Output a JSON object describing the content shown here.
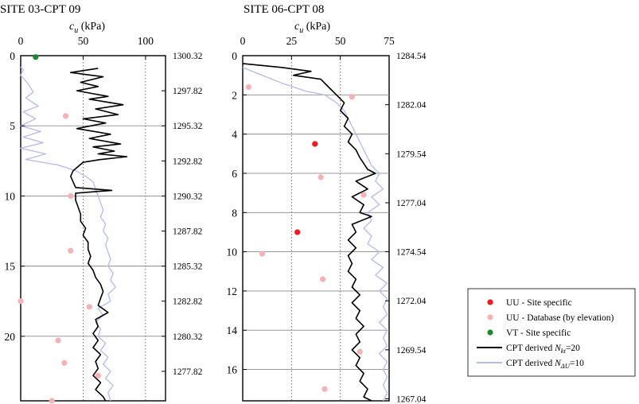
{
  "chart_data": [
    {
      "type": "line",
      "title": "SITE 03-CPT 09",
      "xlabel_var": "c",
      "xlabel_sub": "u",
      "xlabel_unit": " (kPa)",
      "xticks": [
        0,
        50,
        100
      ],
      "xlim": [
        0,
        116
      ],
      "ylim": [
        0,
        24.6
      ],
      "yticks": [
        0,
        5,
        10,
        15,
        20
      ],
      "elevation_ticks": [
        {
          "depth": 0,
          "label": "1300.32"
        },
        {
          "depth": 2.5,
          "label": "1297.82"
        },
        {
          "depth": 5,
          "label": "1295.32"
        },
        {
          "depth": 7.5,
          "label": "1292.82"
        },
        {
          "depth": 10,
          "label": "1290.32"
        },
        {
          "depth": 12.5,
          "label": "1287.82"
        },
        {
          "depth": 15,
          "label": "1285.32"
        },
        {
          "depth": 17.5,
          "label": "1282.82"
        },
        {
          "depth": 20,
          "label": "1280.32"
        },
        {
          "depth": 22.5,
          "label": "1277.82"
        }
      ],
      "hgrid": [
        5,
        10,
        15,
        20
      ],
      "vgrid": [
        50,
        100
      ],
      "series": [
        {
          "key": "cpt_nkt",
          "color": "#000000",
          "points": [
            [
              62,
              0.9
            ],
            [
              40,
              1.2
            ],
            [
              66,
              1.5
            ],
            [
              48,
              1.9
            ],
            [
              62,
              2.2
            ],
            [
              45,
              2.5
            ],
            [
              70,
              2.9
            ],
            [
              55,
              3.1
            ],
            [
              82,
              3.5
            ],
            [
              60,
              3.8
            ],
            [
              78,
              4.2
            ],
            [
              50,
              4.5
            ],
            [
              68,
              4.8
            ],
            [
              45,
              5.2
            ],
            [
              72,
              5.6
            ],
            [
              55,
              5.9
            ],
            [
              80,
              6.3
            ],
            [
              58,
              6.5
            ],
            [
              75,
              6.8
            ],
            [
              62,
              7.0
            ],
            [
              85,
              7.2
            ],
            [
              64,
              7.4
            ],
            [
              50,
              7.6
            ],
            [
              46,
              7.9
            ],
            [
              42,
              8.2
            ],
            [
              40,
              8.6
            ],
            [
              42,
              9.0
            ],
            [
              44,
              9.4
            ],
            [
              73,
              9.6
            ],
            [
              44,
              9.8
            ],
            [
              44,
              10.3
            ],
            [
              46,
              10.8
            ],
            [
              48,
              11.3
            ],
            [
              48,
              11.8
            ],
            [
              52,
              12.3
            ],
            [
              50,
              12.8
            ],
            [
              54,
              13.3
            ],
            [
              54,
              13.8
            ],
            [
              56,
              14.3
            ],
            [
              54,
              14.8
            ],
            [
              58,
              15.3
            ],
            [
              60,
              15.8
            ],
            [
              64,
              16.3
            ],
            [
              66,
              16.8
            ],
            [
              64,
              17.3
            ],
            [
              62,
              17.8
            ],
            [
              70,
              18.3
            ],
            [
              60,
              18.8
            ],
            [
              62,
              19.3
            ],
            [
              58,
              19.8
            ],
            [
              62,
              20.3
            ],
            [
              58,
              20.8
            ],
            [
              64,
              21.3
            ],
            [
              60,
              21.8
            ],
            [
              62,
              22.3
            ],
            [
              58,
              22.8
            ],
            [
              64,
              23.3
            ],
            [
              60,
              23.8
            ],
            [
              66,
              24.3
            ],
            [
              68,
              24.6
            ]
          ]
        },
        {
          "key": "cpt_ndu",
          "color": "#b8bdf0",
          "points": [
            [
              0,
              0.8
            ],
            [
              2,
              1.0
            ],
            [
              0,
              1.4
            ],
            [
              6,
              2.0
            ],
            [
              10,
              2.6
            ],
            [
              4,
              3.0
            ],
            [
              14,
              3.6
            ],
            [
              2,
              4.0
            ],
            [
              12,
              4.5
            ],
            [
              0,
              5.0
            ],
            [
              16,
              5.4
            ],
            [
              2,
              5.8
            ],
            [
              18,
              6.2
            ],
            [
              0,
              6.6
            ],
            [
              20,
              7.0
            ],
            [
              4,
              7.4
            ],
            [
              30,
              7.8
            ],
            [
              44,
              8.2
            ],
            [
              52,
              8.6
            ],
            [
              58,
              9.0
            ],
            [
              60,
              9.5
            ],
            [
              62,
              10.0
            ],
            [
              64,
              10.5
            ],
            [
              66,
              11.0
            ],
            [
              64,
              11.5
            ],
            [
              68,
              12.0
            ],
            [
              66,
              12.5
            ],
            [
              70,
              13.0
            ],
            [
              68,
              13.5
            ],
            [
              70,
              14.0
            ],
            [
              72,
              14.5
            ],
            [
              70,
              15.0
            ],
            [
              74,
              15.5
            ],
            [
              72,
              16.0
            ],
            [
              76,
              16.5
            ],
            [
              70,
              17.0
            ],
            [
              72,
              17.5
            ],
            [
              62,
              18.0
            ],
            [
              66,
              18.5
            ],
            [
              60,
              19.0
            ],
            [
              64,
              19.5
            ],
            [
              62,
              20.0
            ],
            [
              68,
              20.5
            ],
            [
              64,
              21.0
            ],
            [
              70,
              21.5
            ],
            [
              66,
              22.0
            ],
            [
              72,
              22.5
            ],
            [
              68,
              23.0
            ],
            [
              74,
              23.5
            ],
            [
              70,
              24.0
            ],
            [
              72,
              24.6
            ]
          ]
        }
      ],
      "scatter": [
        {
          "key": "uu_database",
          "color": "#f6b2b2",
          "points": [
            [
              36,
              4.3
            ],
            [
              40,
              10.0
            ],
            [
              40,
              13.9
            ],
            [
              55,
              17.9
            ],
            [
              -3,
              17.5
            ],
            [
              30,
              20.3
            ],
            [
              35,
              21.9
            ],
            [
              62,
              22.8
            ],
            [
              25,
              24.6
            ]
          ]
        },
        {
          "key": "vt_site",
          "color": "#1e8a2e",
          "points": [
            [
              12,
              0.1
            ]
          ]
        }
      ]
    },
    {
      "type": "line",
      "title": "SITE 06-CPT 08",
      "xlabel_var": "c",
      "xlabel_sub": "u",
      "xlabel_unit": " (kPa)",
      "xticks": [
        0,
        25,
        50,
        75
      ],
      "xlim": [
        0,
        75
      ],
      "ylim": [
        0,
        17.6
      ],
      "yticks": [
        0,
        2,
        4,
        6,
        8,
        10,
        12,
        14,
        16
      ],
      "elevation_ticks": [
        {
          "depth": 0,
          "label": "1284.54"
        },
        {
          "depth": 2.5,
          "label": "1282.04"
        },
        {
          "depth": 5,
          "label": "1279.54"
        },
        {
          "depth": 7.5,
          "label": "1277.04"
        },
        {
          "depth": 10,
          "label": "1274.54"
        },
        {
          "depth": 12.5,
          "label": "1272.04"
        },
        {
          "depth": 15,
          "label": "1269.54"
        },
        {
          "depth": 17.5,
          "label": "1267.04"
        }
      ],
      "hgrid": [
        2,
        4,
        6,
        8,
        10,
        12,
        14,
        16
      ],
      "vgrid": [
        25,
        50
      ],
      "series": [
        {
          "key": "cpt_nkt",
          "color": "#000000",
          "points": [
            [
              0,
              0.4
            ],
            [
              20,
              0.6
            ],
            [
              35,
              0.8
            ],
            [
              26,
              1.0
            ],
            [
              40,
              1.2
            ],
            [
              44,
              1.6
            ],
            [
              48,
              2.0
            ],
            [
              52,
              2.4
            ],
            [
              50,
              2.8
            ],
            [
              54,
              3.2
            ],
            [
              52,
              3.6
            ],
            [
              56,
              4.0
            ],
            [
              54,
              4.4
            ],
            [
              58,
              4.8
            ],
            [
              60,
              5.2
            ],
            [
              62,
              5.5
            ],
            [
              64,
              5.8
            ],
            [
              68,
              6.0
            ],
            [
              58,
              6.4
            ],
            [
              64,
              6.8
            ],
            [
              56,
              7.2
            ],
            [
              62,
              7.6
            ],
            [
              60,
              8.0
            ],
            [
              66,
              8.2
            ],
            [
              56,
              8.6
            ],
            [
              58,
              9.0
            ],
            [
              54,
              9.4
            ],
            [
              58,
              9.8
            ],
            [
              54,
              10.2
            ],
            [
              56,
              10.6
            ],
            [
              54,
              11.0
            ],
            [
              58,
              11.4
            ],
            [
              56,
              11.8
            ],
            [
              60,
              12.2
            ],
            [
              56,
              12.6
            ],
            [
              60,
              13.0
            ],
            [
              58,
              13.4
            ],
            [
              62,
              13.8
            ],
            [
              58,
              14.2
            ],
            [
              60,
              14.6
            ],
            [
              56,
              15.0
            ],
            [
              60,
              15.4
            ],
            [
              58,
              15.8
            ],
            [
              62,
              16.2
            ],
            [
              60,
              16.6
            ],
            [
              64,
              17.0
            ],
            [
              62,
              17.4
            ],
            [
              66,
              17.6
            ]
          ]
        },
        {
          "key": "cpt_ndu",
          "color": "#b8bdf0",
          "points": [
            [
              0,
              0.6
            ],
            [
              10,
              1.0
            ],
            [
              20,
              1.4
            ],
            [
              32,
              1.8
            ],
            [
              42,
              2.0
            ],
            [
              48,
              2.4
            ],
            [
              52,
              2.8
            ],
            [
              54,
              3.2
            ],
            [
              56,
              3.6
            ],
            [
              58,
              4.0
            ],
            [
              60,
              4.4
            ],
            [
              62,
              4.8
            ],
            [
              64,
              5.2
            ],
            [
              66,
              5.6
            ],
            [
              70,
              6.0
            ],
            [
              68,
              6.4
            ],
            [
              72,
              6.8
            ],
            [
              66,
              7.2
            ],
            [
              70,
              7.6
            ],
            [
              64,
              8.0
            ],
            [
              66,
              8.4
            ],
            [
              62,
              8.8
            ],
            [
              66,
              9.2
            ],
            [
              64,
              9.6
            ],
            [
              70,
              10.0
            ],
            [
              66,
              10.4
            ],
            [
              72,
              10.8
            ],
            [
              68,
              11.2
            ],
            [
              74,
              11.6
            ],
            [
              70,
              12.0
            ],
            [
              74,
              12.4
            ],
            [
              72,
              12.8
            ],
            [
              74,
              13.2
            ],
            [
              70,
              13.6
            ],
            [
              74,
              14.0
            ],
            [
              72,
              14.4
            ],
            [
              74,
              14.8
            ],
            [
              70,
              15.2
            ],
            [
              74,
              15.6
            ],
            [
              72,
              16.0
            ],
            [
              74,
              16.4
            ],
            [
              72,
              16.8
            ],
            [
              74,
              17.2
            ],
            [
              72,
              17.6
            ]
          ]
        }
      ],
      "scatter": [
        {
          "key": "uu_site",
          "color": "#ee1c1c",
          "points": [
            [
              37,
              4.5
            ],
            [
              28,
              9.0
            ]
          ]
        },
        {
          "key": "uu_database",
          "color": "#f6b2b2",
          "points": [
            [
              3,
              1.6
            ],
            [
              56,
              2.1
            ],
            [
              40,
              6.2
            ],
            [
              62,
              7.1
            ],
            [
              10,
              10.1
            ],
            [
              41,
              11.4
            ],
            [
              60,
              15.1
            ],
            [
              42,
              17.0
            ]
          ]
        }
      ]
    }
  ],
  "legend": {
    "items": [
      {
        "key": "uu_site",
        "kind": "marker",
        "color": "#ee1c1c",
        "label": "UU - Site specific"
      },
      {
        "key": "uu_database",
        "kind": "marker",
        "color": "#f6b2b2",
        "label": "UU - Database (by elevation)"
      },
      {
        "key": "vt_site",
        "kind": "marker",
        "color": "#1e8a2e",
        "label": "VT - Site specific"
      },
      {
        "key": "cpt_nkt",
        "kind": "line",
        "color": "#000000",
        "prefix": "CPT derived ",
        "var": "N",
        "sub": "kt",
        "suffix": "=20"
      },
      {
        "key": "cpt_ndu",
        "kind": "line",
        "color": "#b8bdf0",
        "prefix": "CPT derived ",
        "var": "N",
        "sub": "ΔU",
        "suffix": "=10"
      }
    ]
  }
}
